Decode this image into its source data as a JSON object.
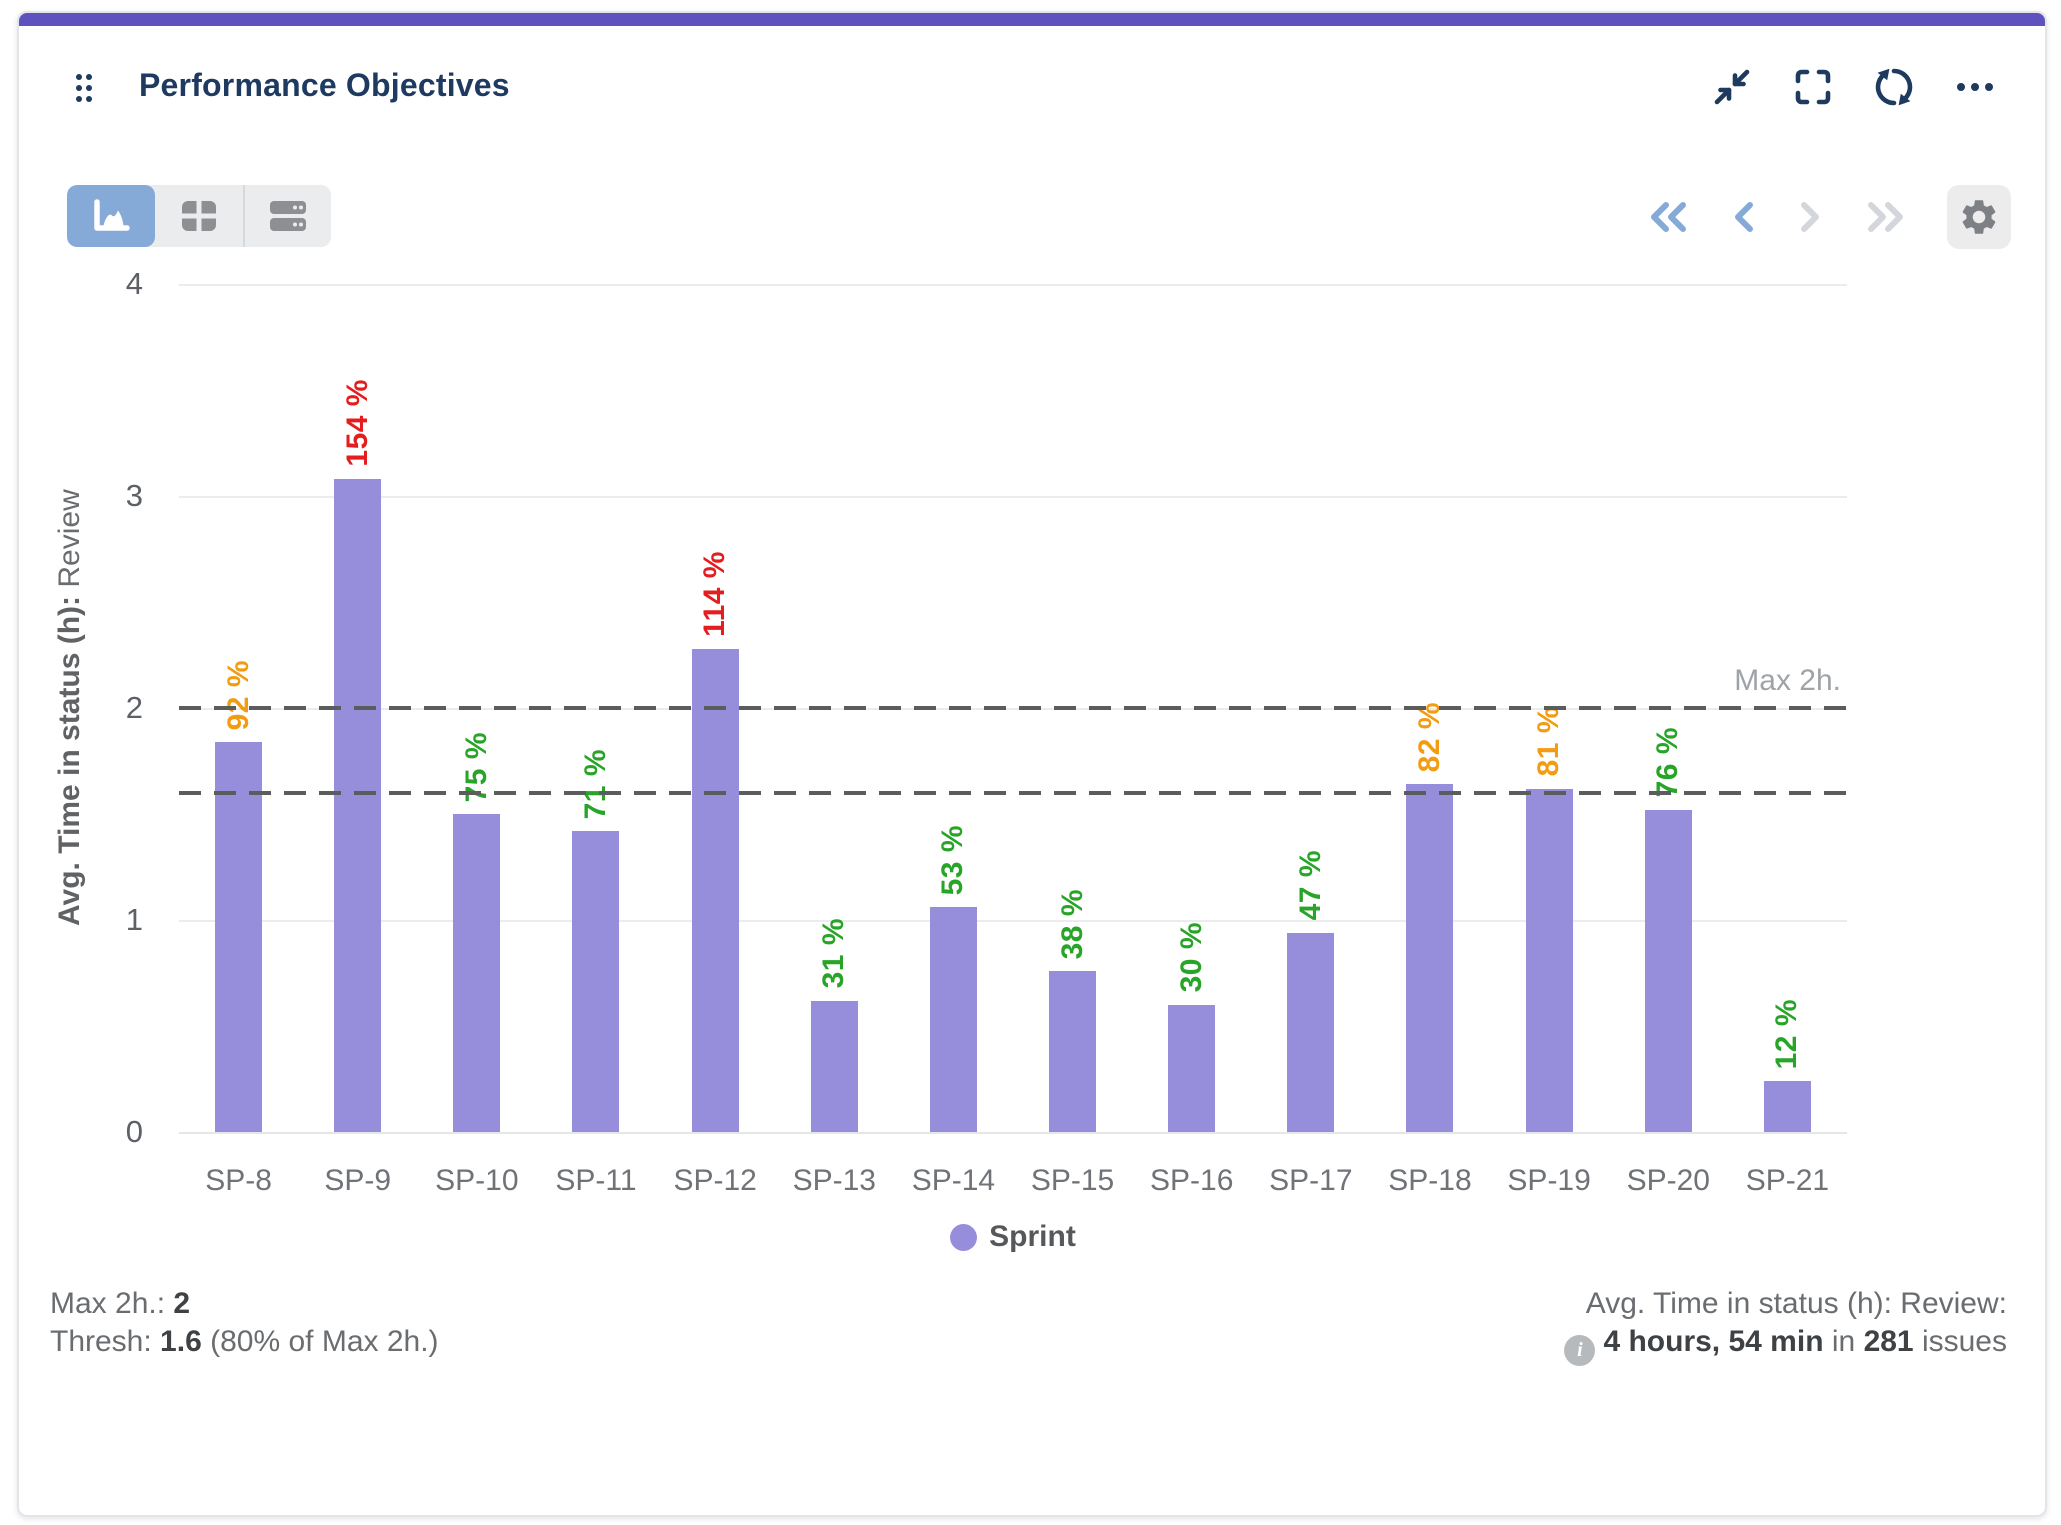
{
  "colors": {
    "accent_bar": "#5e53be",
    "navy_icon": "#1e3a5f",
    "title": "#1e3a60",
    "active_tab_bg": "#85aad8",
    "inactive_icon": "#8d8f92",
    "pager_enabled": "#85aad8",
    "pager_disabled": "#d3d7db",
    "gear": "#7d8084",
    "bar": "#978edb",
    "status_ok": "#28a428",
    "status_warn": "#f29c11",
    "status_over": "#e41e1e"
  },
  "header": {
    "title": "Performance Objectives"
  },
  "toolbar": {
    "view_buttons": [
      {
        "name": "chart-view",
        "active": true
      },
      {
        "name": "table-view",
        "active": false
      },
      {
        "name": "rows-view",
        "active": false
      }
    ]
  },
  "chart_data": {
    "type": "bar",
    "title": "",
    "categories": [
      "SP-8",
      "SP-9",
      "SP-10",
      "SP-11",
      "SP-12",
      "SP-13",
      "SP-14",
      "SP-15",
      "SP-16",
      "SP-17",
      "SP-18",
      "SP-19",
      "SP-20",
      "SP-21"
    ],
    "series": [
      {
        "name": "Sprint",
        "color": "#978edb",
        "values": [
          1.84,
          3.08,
          1.5,
          1.42,
          2.28,
          0.62,
          1.06,
          0.76,
          0.6,
          0.94,
          1.64,
          1.62,
          1.52,
          0.24
        ]
      }
    ],
    "bar_labels": [
      "92 %",
      "154 %",
      "75 %",
      "71 %",
      "114 %",
      "31 %",
      "53 %",
      "38 %",
      "30 %",
      "47 %",
      "82 %",
      "81 %",
      "76 %",
      "12 %"
    ],
    "bar_percentages": [
      92,
      154,
      75,
      71,
      114,
      31,
      53,
      38,
      30,
      47,
      82,
      81,
      76,
      12
    ],
    "bar_statuses": [
      "warn",
      "over",
      "ok",
      "ok",
      "over",
      "ok",
      "ok",
      "ok",
      "ok",
      "ok",
      "warn",
      "warn",
      "ok",
      "ok"
    ],
    "status_colors": {
      "ok": "#28a428",
      "warn": "#f29c11",
      "over": "#e41e1e"
    },
    "ylabel_bold": "Avg. Time in status (h): ",
    "ylabel_regular": "Review",
    "xlabel": "Sprint",
    "yticks": [
      4,
      3,
      2,
      1,
      0
    ],
    "ylim": [
      0,
      4
    ],
    "grid": true,
    "legend_position": "bottom",
    "reference_lines": [
      {
        "value": 2,
        "label": "Max 2h."
      },
      {
        "value": 1.6,
        "label": ""
      }
    ]
  },
  "legend": {
    "label": "Sprint"
  },
  "footer": {
    "max_label": "Max 2h.: ",
    "max_value": "2",
    "thresh_label": "Thresh: ",
    "thresh_value": "1.6",
    "thresh_suffix": " (80% of Max 2h.)",
    "right_title": "Avg. Time in status (h): Review:",
    "info_glyph": "i",
    "right_bold1": "4 hours, 54 min",
    "right_mid": " in ",
    "right_bold2": "281",
    "right_suffix": " issues"
  }
}
